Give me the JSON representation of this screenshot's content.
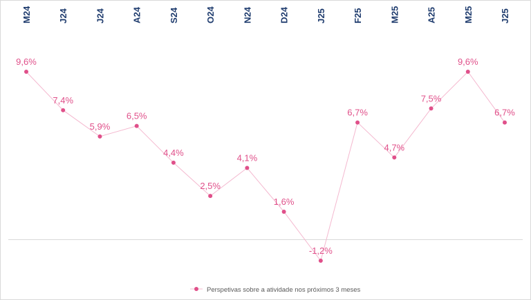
{
  "chart_data": {
    "type": "line",
    "categories": [
      "M24",
      "J24",
      "J24",
      "A24",
      "S24",
      "O24",
      "N24",
      "D24",
      "J25",
      "F25",
      "M25",
      "A25",
      "M25",
      "J25"
    ],
    "series": [
      {
        "name": "Perspetivas sobre a atividade nos próximos 3 meses",
        "values": [
          9.6,
          7.4,
          5.9,
          6.5,
          4.4,
          2.5,
          4.1,
          1.6,
          -1.2,
          6.7,
          4.7,
          7.5,
          9.6,
          6.7
        ],
        "labels": [
          "9,6%",
          "7,4%",
          "5,9%",
          "6,5%",
          "4,4%",
          "2,5%",
          "4,1%",
          "1,6%",
          "-1,2%",
          "6,7%",
          "4,7%",
          "7,5%",
          "9,6%",
          "6,7%"
        ]
      }
    ],
    "ylim": [
      -2,
      12
    ],
    "legend_position": "bottom",
    "grid": false,
    "colors": {
      "line": "#f4b8cf",
      "marker": "#e0508a",
      "label": "#e0508a",
      "category": "#1f3c6e",
      "axis": "#d9d9d9",
      "legend_text": "#595959"
    }
  }
}
